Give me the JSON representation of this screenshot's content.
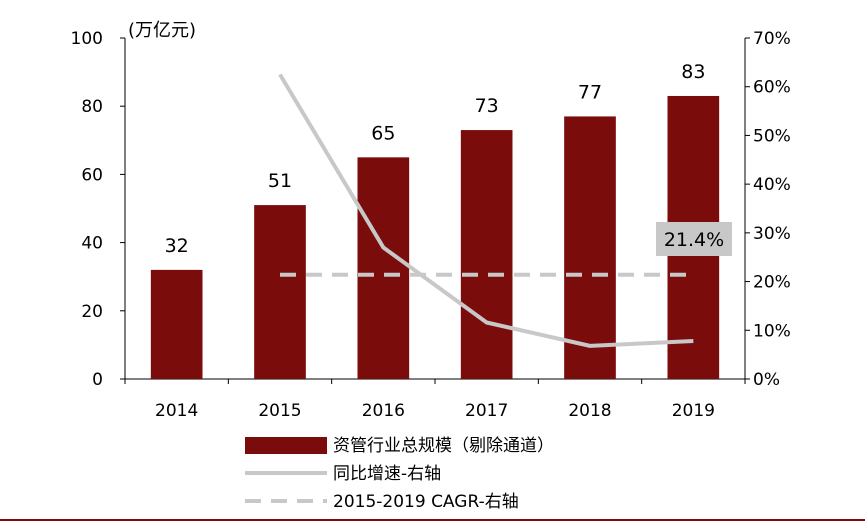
{
  "chart_data": {
    "type": "bar",
    "unit_label": "(万亿元)",
    "categories": [
      "2014",
      "2015",
      "2016",
      "2017",
      "2018",
      "2019"
    ],
    "series": [
      {
        "name": "资管行业总规模（剔除通道）",
        "type": "bar",
        "axis": "left",
        "values": [
          32,
          51,
          65,
          73,
          77,
          83
        ],
        "color": "#7b0c0c"
      },
      {
        "name": "同比增速-右轴",
        "type": "line",
        "axis": "right",
        "values": [
          null,
          62.5,
          27.0,
          11.6,
          6.8,
          7.8
        ],
        "color": "#c8c8c8"
      },
      {
        "name": "2015-2019 CAGR-右轴",
        "type": "line",
        "style": "dashed",
        "axis": "right",
        "values": [
          null,
          21.4,
          21.4,
          21.4,
          21.4,
          21.4
        ],
        "color": "#c8c8c8"
      }
    ],
    "left_axis": {
      "ylim": [
        0,
        100
      ],
      "ticks": [
        "0",
        "20",
        "40",
        "60",
        "80",
        "100"
      ]
    },
    "right_axis": {
      "ylim": [
        0,
        70
      ],
      "ticks": [
        "0%",
        "10%",
        "20%",
        "30%",
        "40%",
        "50%",
        "60%",
        "70%"
      ]
    },
    "annotation": {
      "text": "21.4%",
      "background": "#c8c8c8"
    },
    "data_labels": [
      "32",
      "51",
      "65",
      "73",
      "77",
      "83"
    ],
    "grid": false,
    "legend_position": "bottom"
  },
  "footer": {
    "rule_color": "#7b0c0c"
  }
}
